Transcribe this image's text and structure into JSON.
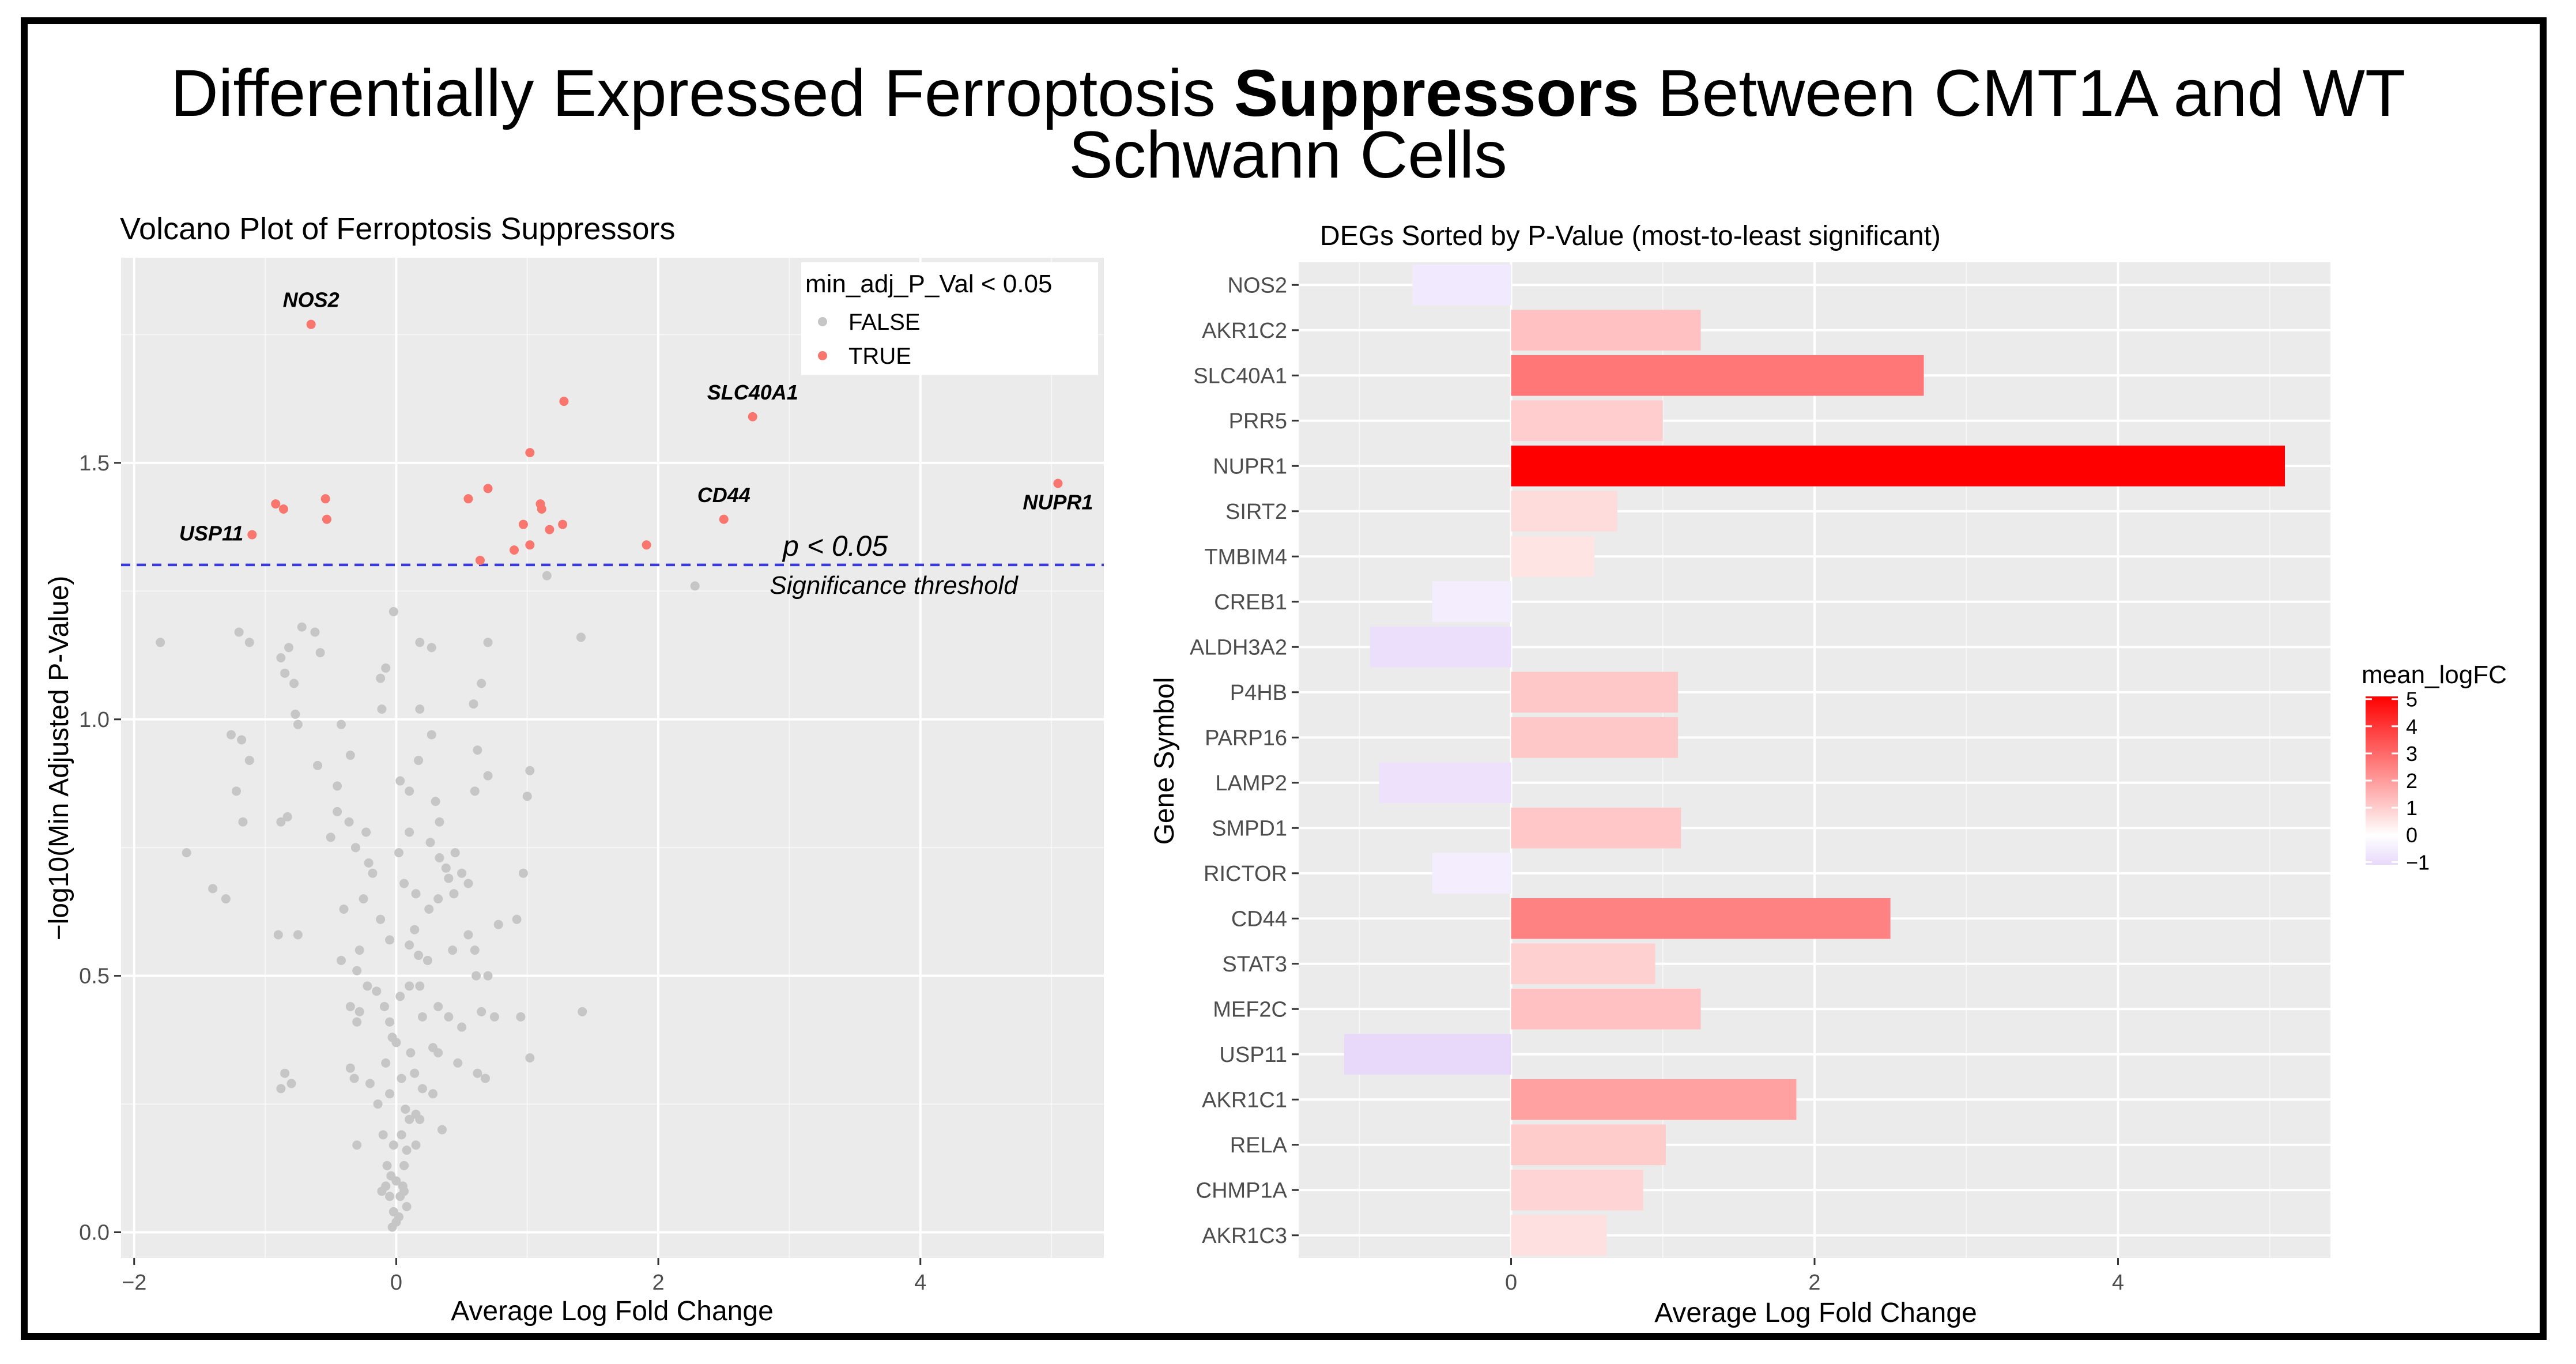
{
  "figure": {
    "title_part1": "Differentially Expressed Ferroptosis ",
    "title_bold": "Suppressors",
    "title_part2": " Between CMT1A and WT",
    "title_line2": "Schwann Cells"
  },
  "colors": {
    "panel_bg": "#ebebeb",
    "grid_major": "#ffffff",
    "point_false": "#c6c6c6",
    "point_true": "#f8766d",
    "threshold_line": "#3a3ad6",
    "gradient_low": "#e8d9fb",
    "gradient_mid": "#ffffff",
    "gradient_high": "#ff0000"
  },
  "chart_data": [
    {
      "type": "scatter",
      "title": "Volcano Plot of Ferroptosis Suppressors",
      "xlabel": "Average Log Fold Change",
      "ylabel": "−log10(Min Adjusted P-Value)",
      "xlim": [
        -2.1,
        5.4
      ],
      "ylim": [
        -0.05,
        1.9
      ],
      "xticks": [
        -2,
        0,
        2,
        4
      ],
      "xtick_labels": [
        "−2",
        "0",
        "2",
        "4"
      ],
      "yticks": [
        0.0,
        0.5,
        1.0,
        1.5
      ],
      "ytick_labels": [
        "0.0",
        "0.5",
        "1.0",
        "1.5"
      ],
      "legend": {
        "title": "min_adj_P_Val < 0.05",
        "entries": [
          "FALSE",
          "TRUE"
        ],
        "position": "top-right"
      },
      "threshold": {
        "y": 1.30103,
        "label": "p < 0.05",
        "sublabel": "Significance threshold"
      },
      "significant_points": [
        {
          "x": -0.65,
          "y": 1.77,
          "label": "NOS2"
        },
        {
          "x": 2.72,
          "y": 1.59,
          "label": "SLC40A1"
        },
        {
          "x": 5.05,
          "y": 1.46,
          "label": "NUPR1"
        },
        {
          "x": 2.5,
          "y": 1.39,
          "label": "CD44"
        },
        {
          "x": -1.1,
          "y": 1.36,
          "label": "USP11"
        },
        {
          "x": 1.28,
          "y": 1.62,
          "label": ""
        },
        {
          "x": 1.02,
          "y": 1.52,
          "label": ""
        },
        {
          "x": -0.92,
          "y": 1.42,
          "label": ""
        },
        {
          "x": -0.86,
          "y": 1.41,
          "label": ""
        },
        {
          "x": -0.54,
          "y": 1.43,
          "label": ""
        },
        {
          "x": -0.53,
          "y": 1.39,
          "label": ""
        },
        {
          "x": 0.55,
          "y": 1.43,
          "label": ""
        },
        {
          "x": 0.7,
          "y": 1.45,
          "label": ""
        },
        {
          "x": 1.1,
          "y": 1.42,
          "label": ""
        },
        {
          "x": 1.11,
          "y": 1.41,
          "label": ""
        },
        {
          "x": 0.97,
          "y": 1.38,
          "label": ""
        },
        {
          "x": 1.17,
          "y": 1.37,
          "label": ""
        },
        {
          "x": 1.27,
          "y": 1.38,
          "label": ""
        },
        {
          "x": 1.02,
          "y": 1.34,
          "label": ""
        },
        {
          "x": 0.9,
          "y": 1.33,
          "label": ""
        },
        {
          "x": 1.91,
          "y": 1.34,
          "label": ""
        },
        {
          "x": 0.64,
          "y": 1.31,
          "label": ""
        }
      ],
      "nonsignificant_points": [
        [
          2.28,
          1.26
        ],
        [
          1.15,
          1.28
        ],
        [
          -0.02,
          1.21
        ],
        [
          -1.8,
          1.15
        ],
        [
          -1.2,
          1.17
        ],
        [
          -1.12,
          1.15
        ],
        [
          -0.72,
          1.18
        ],
        [
          -0.82,
          1.14
        ],
        [
          -0.62,
          1.17
        ],
        [
          -0.58,
          1.13
        ],
        [
          -0.88,
          1.12
        ],
        [
          -0.78,
          1.07
        ],
        [
          -0.85,
          1.09
        ],
        [
          0.18,
          1.15
        ],
        [
          0.27,
          1.14
        ],
        [
          0.7,
          1.15
        ],
        [
          1.41,
          1.16
        ],
        [
          0.65,
          1.07
        ],
        [
          0.59,
          1.03
        ],
        [
          -0.08,
          1.1
        ],
        [
          -0.12,
          1.08
        ],
        [
          -0.11,
          1.02
        ],
        [
          -0.77,
          1.01
        ],
        [
          -1.6,
          0.74
        ],
        [
          -1.26,
          0.97
        ],
        [
          -1.18,
          0.96
        ],
        [
          -1.22,
          0.86
        ],
        [
          -1.12,
          0.92
        ],
        [
          -0.75,
          0.99
        ],
        [
          -0.42,
          0.99
        ],
        [
          -0.35,
          0.93
        ],
        [
          -0.6,
          0.91
        ],
        [
          -0.45,
          0.87
        ],
        [
          0.18,
          1.02
        ],
        [
          0.27,
          0.97
        ],
        [
          0.17,
          0.92
        ],
        [
          0.1,
          0.86
        ],
        [
          0.03,
          0.88
        ],
        [
          0.3,
          0.84
        ],
        [
          0.33,
          0.8
        ],
        [
          0.62,
          0.94
        ],
        [
          0.6,
          0.86
        ],
        [
          0.7,
          0.89
        ],
        [
          1.02,
          0.9
        ],
        [
          1.0,
          0.85
        ],
        [
          -0.83,
          0.81
        ],
        [
          -0.88,
          0.8
        ],
        [
          -1.17,
          0.8
        ],
        [
          -0.23,
          0.78
        ],
        [
          -0.36,
          0.8
        ],
        [
          -0.45,
          0.82
        ],
        [
          -0.5,
          0.77
        ],
        [
          -0.31,
          0.75
        ],
        [
          -0.21,
          0.72
        ],
        [
          0.26,
          0.76
        ],
        [
          0.33,
          0.73
        ],
        [
          0.45,
          0.74
        ],
        [
          0.38,
          0.71
        ],
        [
          0.4,
          0.69
        ],
        [
          0.5,
          0.7
        ],
        [
          0.55,
          0.68
        ],
        [
          0.44,
          0.66
        ],
        [
          0.15,
          0.66
        ],
        [
          0.32,
          0.65
        ],
        [
          0.06,
          0.68
        ],
        [
          0.14,
          0.59
        ],
        [
          -0.25,
          0.65
        ],
        [
          -0.4,
          0.63
        ],
        [
          0.25,
          0.63
        ],
        [
          -1.4,
          0.67
        ],
        [
          -1.3,
          0.65
        ],
        [
          -0.9,
          0.58
        ],
        [
          -0.75,
          0.58
        ],
        [
          -0.12,
          0.61
        ],
        [
          -0.05,
          0.57
        ],
        [
          0.1,
          0.56
        ],
        [
          0.17,
          0.54
        ],
        [
          0.24,
          0.53
        ],
        [
          0.6,
          0.55
        ],
        [
          0.61,
          0.5
        ],
        [
          0.7,
          0.5
        ],
        [
          0.97,
          0.7
        ],
        [
          0.92,
          0.61
        ],
        [
          -0.42,
          0.53
        ],
        [
          -0.3,
          0.51
        ],
        [
          -0.22,
          0.48
        ],
        [
          -0.15,
          0.47
        ],
        [
          -0.09,
          0.44
        ],
        [
          0.1,
          0.48
        ],
        [
          0.18,
          0.48
        ],
        [
          0.2,
          0.42
        ],
        [
          0.32,
          0.44
        ],
        [
          0.4,
          0.42
        ],
        [
          0.5,
          0.4
        ],
        [
          0.65,
          0.43
        ],
        [
          0.75,
          0.42
        ],
        [
          0.95,
          0.42
        ],
        [
          1.42,
          0.43
        ],
        [
          1.02,
          0.34
        ],
        [
          0.03,
          0.46
        ],
        [
          -0.05,
          0.41
        ],
        [
          -0.35,
          0.44
        ],
        [
          -0.28,
          0.43
        ],
        [
          -0.3,
          0.41
        ],
        [
          -0.03,
          0.38
        ],
        [
          0.0,
          0.37
        ],
        [
          0.28,
          0.36
        ],
        [
          0.32,
          0.35
        ],
        [
          0.47,
          0.33
        ],
        [
          0.62,
          0.31
        ],
        [
          0.68,
          0.3
        ],
        [
          0.11,
          0.35
        ],
        [
          -0.08,
          0.33
        ],
        [
          0.04,
          0.3
        ],
        [
          0.14,
          0.31
        ],
        [
          0.2,
          0.28
        ],
        [
          0.28,
          0.27
        ],
        [
          -0.05,
          0.27
        ],
        [
          -0.14,
          0.25
        ],
        [
          0.07,
          0.24
        ],
        [
          0.15,
          0.23
        ],
        [
          0.1,
          0.22
        ],
        [
          -0.35,
          0.32
        ],
        [
          -0.32,
          0.3
        ],
        [
          -0.2,
          0.29
        ],
        [
          -0.85,
          0.31
        ],
        [
          -0.88,
          0.28
        ],
        [
          -0.8,
          0.29
        ],
        [
          -0.1,
          0.19
        ],
        [
          0.04,
          0.19
        ],
        [
          -0.02,
          0.17
        ],
        [
          0.08,
          0.16
        ],
        [
          -0.07,
          0.13
        ],
        [
          0.06,
          0.13
        ],
        [
          -0.04,
          0.11
        ],
        [
          0.0,
          0.1
        ],
        [
          -0.08,
          0.09
        ],
        [
          0.06,
          0.08
        ],
        [
          -0.05,
          0.07
        ],
        [
          0.03,
          0.07
        ],
        [
          0.08,
          0.05
        ],
        [
          -0.02,
          0.04
        ],
        [
          0.02,
          0.03
        ],
        [
          0.0,
          0.02
        ],
        [
          -0.03,
          0.01
        ],
        [
          0.05,
          0.09
        ],
        [
          -0.11,
          0.08
        ],
        [
          0.15,
          0.17
        ],
        [
          0.18,
          0.22
        ],
        [
          0.35,
          0.2
        ],
        [
          -0.3,
          0.17
        ],
        [
          -0.28,
          0.55
        ],
        [
          0.43,
          0.55
        ],
        [
          0.55,
          0.58
        ],
        [
          -0.18,
          0.7
        ],
        [
          0.1,
          0.78
        ],
        [
          0.02,
          0.74
        ],
        [
          0.78,
          0.6
        ]
      ]
    },
    {
      "type": "bar",
      "orientation": "horizontal",
      "title": "DEGs Sorted by P-Value (most-to-least significant)",
      "xlabel": "Average Log Fold Change",
      "ylabel": "Gene Symbol",
      "xlim": [
        -1.4,
        5.4
      ],
      "xticks": [
        0,
        2,
        4
      ],
      "xtick_labels": [
        "0",
        "2",
        "4"
      ],
      "categories": [
        "NOS2",
        "AKR1C2",
        "SLC40A1",
        "PRR5",
        "NUPR1",
        "SIRT2",
        "TMBIM4",
        "CREB1",
        "ALDH3A2",
        "P4HB",
        "PARP16",
        "LAMP2",
        "SMPD1",
        "RICTOR",
        "CD44",
        "STAT3",
        "MEF2C",
        "USP11",
        "AKR1C1",
        "RELA",
        "CHMP1A",
        "AKR1C3"
      ],
      "values": [
        -0.65,
        1.25,
        2.72,
        1.0,
        5.1,
        0.7,
        0.55,
        -0.52,
        -0.93,
        1.1,
        1.1,
        -0.87,
        1.12,
        -0.52,
        2.5,
        0.95,
        1.25,
        -1.1,
        1.88,
        1.02,
        0.87,
        0.63
      ],
      "legend": {
        "title": "mean_logFC",
        "ticks": [
          5,
          4,
          3,
          2,
          1,
          0,
          -1
        ],
        "tick_labels": [
          "5",
          "4",
          "3",
          "2",
          "1",
          "0",
          "−1"
        ],
        "range": [
          -1.1,
          5.1
        ],
        "position": "right"
      }
    }
  ]
}
